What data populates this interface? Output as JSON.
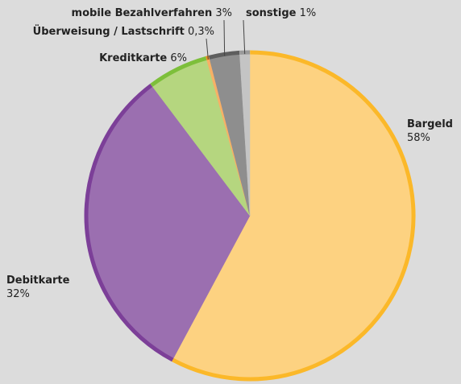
{
  "chart_data": {
    "type": "pie",
    "categories": [
      "Bargeld",
      "Debitkarte",
      "Kreditkarte",
      "Überweisung / Lastschrift",
      "mobile Bezahlverfahren",
      "sonstige"
    ],
    "values": [
      58,
      32,
      6,
      0.3,
      3,
      1
    ],
    "value_labels": [
      "58%",
      "32%",
      "6%",
      "0,3%",
      "3%",
      "1%"
    ],
    "colors": [
      "#fdd281",
      "#9b6fb0",
      "#b5d67f",
      "#f8b066",
      "#8e8e8e",
      "#c4c4c4"
    ],
    "edge_colors": [
      "#fbb829",
      "#7c3f98",
      "#7dbf3a",
      "#f08a1c",
      "#5e5e5e",
      "#9a9a9a"
    ]
  }
}
